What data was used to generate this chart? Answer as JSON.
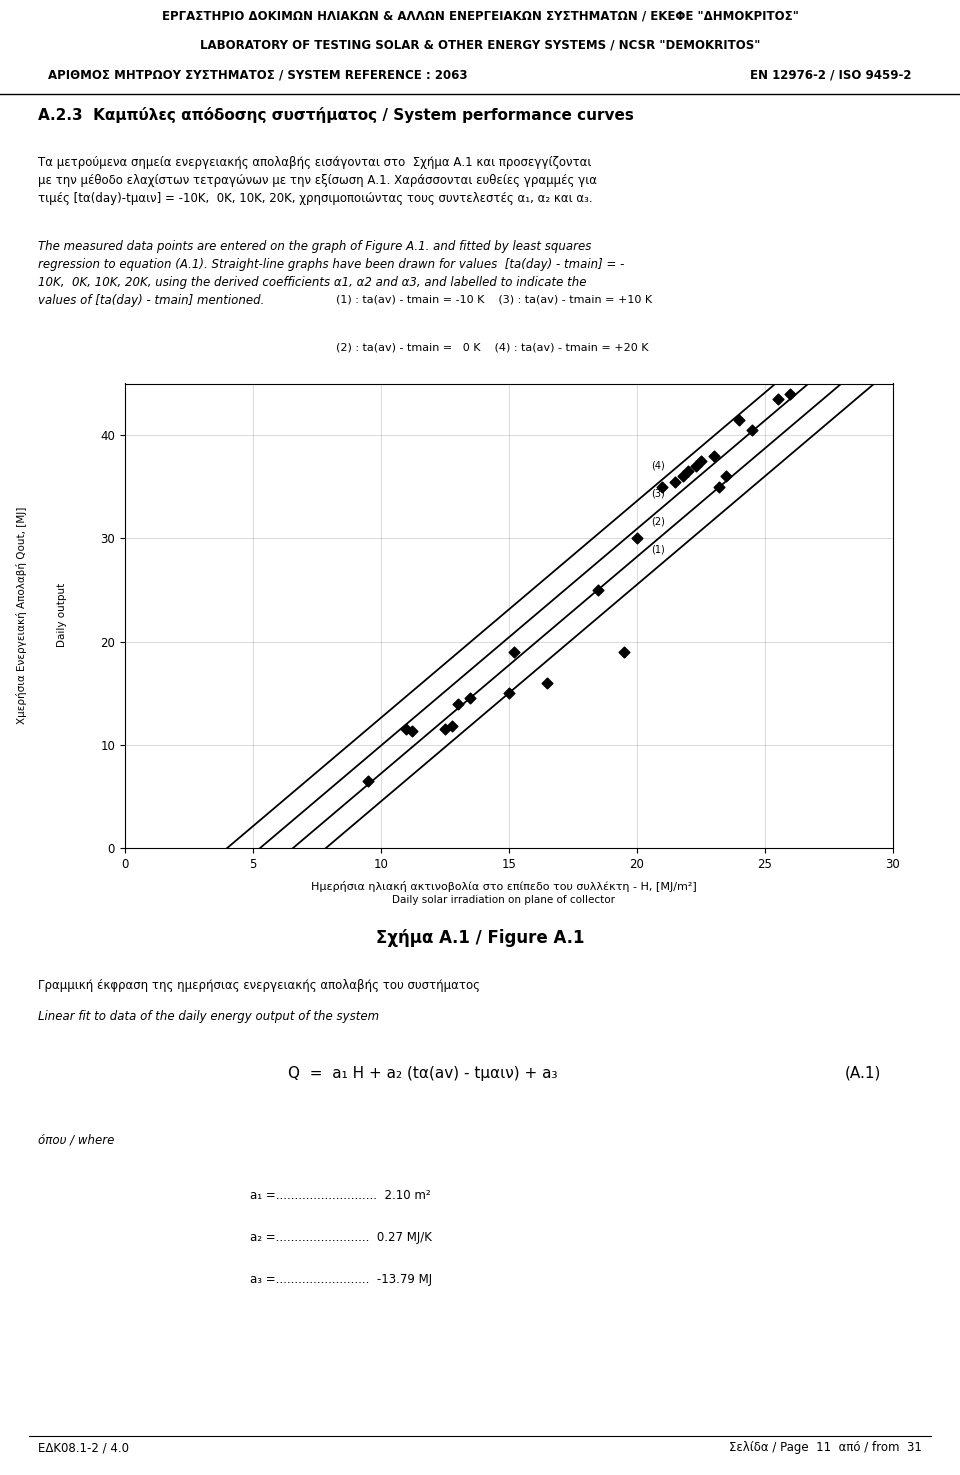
{
  "header_line1": "ΕΡΓΑΣΤΗΡΙΟ ΔΟΚΙΜΩΝ ΗΛΙΑΚΩΝ & ΑΛΛΩΝ ΕΝΕΡΓΕΙΑΚΩΝ ΣΥΣΤΗΜΑΤΩΝ / ΕΚΕΦΕ \"ΔΗΜΟΚΡΙΤΟΣ\"",
  "header_line2": "LABORATORY OF TESTING SOLAR & OTHER ENERGY SYSTEMS / NCSR \"DEMOKRITOS\"",
  "header_line3": "ΑΡΙΘΜΟΣ ΜΗΤΡΩΟΥ ΣΥΣΤΗΜΑΤΟΣ / SYSTEM REFERENCE : 2063",
  "header_line3_right": "EN 12976-2 / ISO 9459-2",
  "section_title": "A.2.3  Καμπύλες απόδοσης συστήματος / System performance curves",
  "greek_para": "Τα μετρούμενα σημεία ενεργειακής απολαβής εισάγονται στο  Σχήμα Α.1 και προσεγγίζονται\nμε την μέθοδο ελαχίστων τετραγώνων με την εξίσωση Α.1. Χαράσσονται ευθείες γραμμές για\nτιμές [tα(day)-tμαιν] = -10K,  0K, 10K, 20K, χρησιμοποιώντας τους συντελεστές α₁, α₂ και α₃.",
  "english_para": "The measured data points are entered on the graph of Figure A.1. and fitted by least squares\nregression to equation (A.1). Straight-line graphs have been drawn for values  [ta(day) - tmain] = -\n10K,  0K, 10K, 20K, using the derived coefficients α1, α2 and α3, and labelled to indicate the\nvalues of [ta(day) - tmain] mentioned.",
  "legend_l1": "(1) : ta(av) - tmain = -10 K    (3) : ta(av) - tmain = +10 K",
  "legend_l2": "(2) : ta(av) - tmain =   0 K    (4) : ta(av) - tmain = +20 K",
  "ylabel_greek": "Χμερήσια Ενεργειακή Απολαβή Qout, [MJ]",
  "ylabel_english": "Daily output",
  "xlabel_greek": "Ημερήσια ηλιακή ακτινοβολία στο επίπεδο του συλλέκτη - Η, [MJ/m²]",
  "xlabel_english": "Daily solar irradiation on plane of collector",
  "figure_title": "Σχήμα Α.1 / Figure A.1",
  "formula_label_gr": "Γραμμική έκφραση της ημερήσιας ενεργειακής απολαβής του συστήματος",
  "formula_label_en": "Linear fit to data of the daily energy output of the system",
  "formula_str": "Q  =  a₁ H + a₂ (tα(av) - tμαιν) + a₃",
  "formula_ref": "(A.1)",
  "opou_where": "όπου / where",
  "a1_str": "a₁ =...........................  2.10 m²",
  "a2_str": "a₂ =.........................  0.27 MJ/K",
  "a3_str": "a₃ =.........................  -13.79 MJ",
  "footer_left": "ΕΔΚ08.1-2 / 4.0",
  "footer_right": "Σελίδα / Page  11  από / from  31",
  "xlim": [
    0,
    30
  ],
  "ylim": [
    0,
    45
  ],
  "xticks": [
    0,
    5,
    10,
    15,
    20,
    25,
    30
  ],
  "yticks": [
    0,
    10,
    20,
    30,
    40
  ],
  "a1": 2.1,
  "a2": 0.27,
  "a3": -13.79,
  "delta_ts": [
    -10,
    0,
    10,
    20
  ],
  "data_points": [
    [
      9.5,
      6.5
    ],
    [
      11.0,
      11.5
    ],
    [
      11.2,
      11.3
    ],
    [
      12.5,
      11.5
    ],
    [
      12.8,
      11.8
    ],
    [
      13.0,
      14.0
    ],
    [
      13.5,
      14.5
    ],
    [
      15.0,
      15.0
    ],
    [
      15.2,
      19.0
    ],
    [
      16.5,
      16.0
    ],
    [
      18.5,
      25.0
    ],
    [
      19.5,
      19.0
    ],
    [
      20.0,
      30.0
    ],
    [
      21.0,
      35.0
    ],
    [
      21.5,
      35.5
    ],
    [
      21.8,
      36.0
    ],
    [
      22.0,
      36.5
    ],
    [
      22.3,
      37.0
    ],
    [
      22.5,
      37.5
    ],
    [
      23.0,
      38.0
    ],
    [
      23.2,
      35.0
    ],
    [
      23.5,
      36.0
    ],
    [
      24.0,
      41.5
    ],
    [
      24.5,
      40.5
    ],
    [
      25.5,
      43.5
    ],
    [
      26.0,
      44.0
    ]
  ]
}
